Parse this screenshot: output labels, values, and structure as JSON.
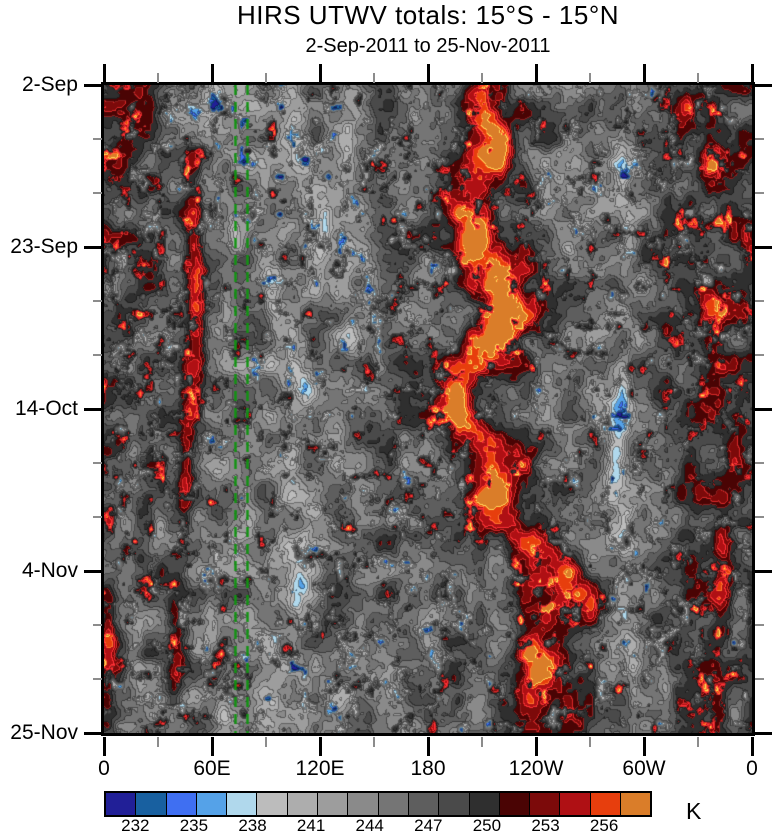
{
  "chart_data": {
    "type": "heatmap",
    "title": "HIRS UTWV totals: 15°S - 15°N",
    "subtitle": "2-Sep-2011 to 25-Nov-2011",
    "x_axis": {
      "kind": "longitude",
      "min_deg": 0,
      "max_deg": 360,
      "major_ticks": [
        {
          "deg": 0,
          "label": "0"
        },
        {
          "deg": 60,
          "label": "60E"
        },
        {
          "deg": 120,
          "label": "120E"
        },
        {
          "deg": 180,
          "label": "180"
        },
        {
          "deg": 240,
          "label": "120W"
        },
        {
          "deg": 300,
          "label": "60W"
        },
        {
          "deg": 360,
          "label": "0"
        }
      ],
      "minor_ticks_deg": [
        30,
        90,
        150,
        210,
        270,
        330
      ]
    },
    "y_axis": {
      "kind": "time",
      "start_date": "2-Sep-2011",
      "end_date": "25-Nov-2011",
      "span_days": 84,
      "major_ticks": [
        {
          "day": 0,
          "label": "2-Sep"
        },
        {
          "day": 21,
          "label": "23-Sep"
        },
        {
          "day": 42,
          "label": "14-Oct"
        },
        {
          "day": 63,
          "label": "4-Nov"
        },
        {
          "day": 84,
          "label": "25-Nov"
        }
      ],
      "minor_ticks_day": [
        7,
        14,
        28,
        35,
        49,
        56,
        70,
        77
      ]
    },
    "colorbar": {
      "unit": "K",
      "level_start": 230.5,
      "level_step": 1.5,
      "n_cells": 18,
      "colors": [
        "#211f97",
        "#1860a0",
        "#3f6ff2",
        "#55a2e8",
        "#b0d8ec",
        "#bcbcbc",
        "#adadad",
        "#9d9d9d",
        "#8a8a8a",
        "#757575",
        "#5e5e5e",
        "#4a4a4a",
        "#2f2f2f",
        "#4a0404",
        "#7c0a0a",
        "#af1014",
        "#e73e0d",
        "#da7d29"
      ],
      "tick_labels": [
        "232",
        "235",
        "238",
        "241",
        "244",
        "247",
        "250",
        "253",
        "256"
      ]
    },
    "reference_lines": {
      "color": "#109410",
      "style": "dashed",
      "dash": [
        10,
        7
      ],
      "width": 2.4,
      "lons_deg": [
        72.8,
        79.4
      ]
    },
    "field": {
      "base_K": 245.4,
      "noise_amp_K": 6.3,
      "noise_scale_lon_deg": 13,
      "noise_scale_day": 3.3,
      "speckle": {
        "cool_thresh": 0.63,
        "cool_gain": 42,
        "warm_thresh": 0.66,
        "warm_gain": 38
      },
      "band": {
        "amp": 6.8,
        "width_deg": 14,
        "base_lon": 214,
        "slope": 0.35,
        "osc_amp": 9,
        "osc_period": 23,
        "osc_phase": 0.9,
        "wobble": 9,
        "bumps": [
          {
            "day": 9,
            "amp": 10,
            "w": 5
          },
          {
            "day": 31,
            "amp": 12,
            "w": 5
          },
          {
            "day": 42,
            "amp": -10,
            "w": 8
          },
          {
            "day": 65,
            "amp": 40,
            "w": 7
          },
          {
            "day": 81,
            "amp": 32,
            "w": 7
          }
        ]
      },
      "bias_bands": [
        {
          "lon": 332,
          "amp": 3.2,
          "width": 22
        },
        {
          "lon": 95,
          "amp": -2.2,
          "width": 28
        },
        {
          "lon": 286,
          "amp": -2.0,
          "width": 14
        },
        {
          "lon": 22,
          "amp": 1.2,
          "width": 18
        }
      ],
      "features": [
        {
          "lon": 210,
          "day": 3,
          "amp": 5,
          "rlon": 7,
          "rday": 3
        },
        {
          "lon": 216,
          "day": 9,
          "amp": 6,
          "rlon": 8,
          "rday": 3.5
        },
        {
          "lon": 203,
          "day": 21,
          "amp": 6.5,
          "rlon": 8,
          "rday": 3.5
        },
        {
          "lon": 222,
          "day": 31,
          "amp": 7,
          "rlon": 9,
          "rday": 4
        },
        {
          "lon": 199,
          "day": 42,
          "amp": 4.5,
          "rlon": 6,
          "rday": 3
        },
        {
          "lon": 214,
          "day": 53,
          "amp": 6.5,
          "rlon": 8,
          "rday": 3.5
        },
        {
          "lon": 238,
          "day": 63,
          "amp": 6.5,
          "rlon": 8,
          "rday": 3.5
        },
        {
          "lon": 258,
          "day": 64,
          "amp": 6,
          "rlon": 7,
          "rday": 3
        },
        {
          "lon": 240,
          "day": 74,
          "amp": 5,
          "rlon": 6,
          "rday": 3
        },
        {
          "lon": 235,
          "day": 82,
          "amp": 5.5,
          "rlon": 8,
          "rday": 3
        },
        {
          "lon": 49,
          "day": 12,
          "amp": 6,
          "rlon": 3.5,
          "rday": 4
        },
        {
          "lon": 51,
          "day": 22,
          "amp": 7,
          "rlon": 4,
          "rday": 5
        },
        {
          "lon": 52,
          "day": 33,
          "amp": 9,
          "rlon": 4.5,
          "rday": 6
        },
        {
          "lon": 49,
          "day": 43,
          "amp": 8,
          "rlon": 4,
          "rday": 5
        },
        {
          "lon": 45,
          "day": 52,
          "amp": 6.5,
          "rlon": 3.5,
          "rday": 4
        },
        {
          "lon": 41,
          "day": 71,
          "amp": 4.5,
          "rlon": 3,
          "rday": 4
        },
        {
          "lon": 39,
          "day": 78,
          "amp": 4.5,
          "rlon": 3,
          "rday": 2.5
        },
        {
          "lon": 3,
          "day": 71,
          "amp": 5,
          "rlon": 3,
          "rday": 4
        },
        {
          "lon": 12,
          "day": 8,
          "amp": 3.5,
          "rlon": 8,
          "rday": 6
        },
        {
          "lon": 322,
          "day": 3,
          "amp": 4.5,
          "rlon": 4,
          "rday": 2.5
        },
        {
          "lon": 338,
          "day": 10,
          "amp": 6,
          "rlon": 5,
          "rday": 3
        },
        {
          "lon": 337,
          "day": 28,
          "amp": 5,
          "rlon": 4,
          "rday": 3
        },
        {
          "lon": 358,
          "day": 21,
          "amp": 4,
          "rlon": 3,
          "rday": 3
        },
        {
          "lon": 352,
          "day": 44,
          "amp": 3.5,
          "rlon": 3,
          "rday": 2.5
        },
        {
          "lon": 344,
          "day": 58,
          "amp": 5,
          "rlon": 4,
          "rday": 3
        },
        {
          "lon": 344,
          "day": 66,
          "amp": 6,
          "rlon": 4,
          "rday": 3
        },
        {
          "lon": 341,
          "day": 82,
          "amp": 5,
          "rlon": 4,
          "rday": 3
        },
        {
          "lon": 64,
          "day": 2,
          "amp": -8,
          "rlon": 5,
          "rday": 2.5
        },
        {
          "lon": 140,
          "day": 3,
          "amp": -6,
          "rlon": 5,
          "rday": 2.5
        },
        {
          "lon": 258,
          "day": 7,
          "amp": -3.5,
          "rlon": 2.5,
          "rday": 1.5
        },
        {
          "lon": 110,
          "day": 9,
          "amp": -4,
          "rlon": 4,
          "rday": 2
        },
        {
          "lon": 135,
          "day": 10,
          "amp": -4.5,
          "rlon": 4,
          "rday": 2.5
        },
        {
          "lon": 288,
          "day": 11,
          "amp": -6,
          "rlon": 4,
          "rday": 2.5
        },
        {
          "lon": 72,
          "day": 19,
          "amp": -4,
          "rlon": 2.5,
          "rday": 2
        },
        {
          "lon": 122,
          "day": 20,
          "amp": -5,
          "rlon": 4,
          "rday": 3
        },
        {
          "lon": 292,
          "day": 20,
          "amp": -5,
          "rlon": 3.5,
          "rday": 2
        },
        {
          "lon": 135,
          "day": 22,
          "amp": -4,
          "rlon": 3,
          "rday": 2
        },
        {
          "lon": 5,
          "day": 26,
          "amp": -4,
          "rlon": 3,
          "rday": 2
        },
        {
          "lon": 148,
          "day": 27,
          "amp": -5,
          "rlon": 4,
          "rday": 2
        },
        {
          "lon": 93,
          "day": 27,
          "amp": -4,
          "rlon": 3,
          "rday": 2
        },
        {
          "lon": 96,
          "day": 30,
          "amp": -4,
          "rlon": 3,
          "rday": 2
        },
        {
          "lon": 137,
          "day": 33,
          "amp": -5,
          "rlon": 4,
          "rday": 2.5
        },
        {
          "lon": 153,
          "day": 35,
          "amp": -4,
          "rlon": 3,
          "rday": 2
        },
        {
          "lon": 112,
          "day": 39,
          "amp": -5,
          "rlon": 4,
          "rday": 2.5
        },
        {
          "lon": 288,
          "day": 41,
          "amp": -6,
          "rlon": 4,
          "rday": 3
        },
        {
          "lon": 285,
          "day": 46,
          "amp": -6,
          "rlon": 4,
          "rday": 3
        },
        {
          "lon": 17,
          "day": 47,
          "amp": -4,
          "rlon": 3,
          "rday": 2.5
        },
        {
          "lon": 283,
          "day": 51,
          "amp": -5,
          "rlon": 3.5,
          "rday": 2.5
        },
        {
          "lon": 290,
          "day": 57,
          "amp": -4,
          "rlon": 3,
          "rday": 2
        },
        {
          "lon": 30,
          "day": 58,
          "amp": -4,
          "rlon": 3,
          "rday": 2.5
        },
        {
          "lon": 109,
          "day": 66,
          "amp": -7,
          "rlon": 5,
          "rday": 3
        },
        {
          "lon": 287,
          "day": 67,
          "amp": -5,
          "rlon": 4,
          "rday": 2.5
        },
        {
          "lon": 60,
          "day": 70,
          "amp": -4,
          "rlon": 3.5,
          "rday": 2.5
        },
        {
          "lon": 20,
          "day": 71,
          "amp": -4.5,
          "rlon": 3,
          "rday": 2
        },
        {
          "lon": 294,
          "day": 74,
          "amp": -5,
          "rlon": 4,
          "rday": 2.5
        },
        {
          "lon": 18,
          "day": 76,
          "amp": -4,
          "rlon": 3,
          "rday": 2
        },
        {
          "lon": 312,
          "day": 77,
          "amp": -4,
          "rlon": 3,
          "rday": 2
        },
        {
          "lon": 67,
          "day": 81,
          "amp": -6,
          "rlon": 4,
          "rday": 2.5
        },
        {
          "lon": 350,
          "day": 82,
          "amp": -4,
          "rlon": 3,
          "rday": 2
        }
      ]
    }
  }
}
